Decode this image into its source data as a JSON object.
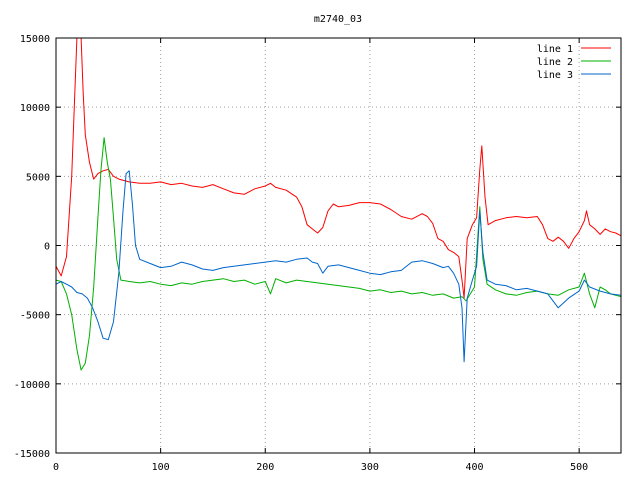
{
  "chart_data": {
    "type": "line",
    "title": "m2740_03",
    "xlabel": "",
    "ylabel": "",
    "xlim": [
      0,
      540
    ],
    "ylim": [
      -15000,
      15000
    ],
    "x_ticks": [
      0,
      100,
      200,
      300,
      400,
      500
    ],
    "y_ticks": [
      -15000,
      -10000,
      -5000,
      0,
      5000,
      10000,
      15000
    ],
    "grid": true,
    "legend_position": "top-right",
    "series": [
      {
        "name": "line 1",
        "color": "#ff0000",
        "points": [
          [
            0,
            -1500
          ],
          [
            5,
            -2200
          ],
          [
            10,
            -800
          ],
          [
            15,
            5000
          ],
          [
            18,
            11000
          ],
          [
            20,
            15000
          ],
          [
            22,
            15000
          ],
          [
            24,
            15000
          ],
          [
            26,
            11000
          ],
          [
            28,
            8000
          ],
          [
            32,
            6000
          ],
          [
            36,
            4800
          ],
          [
            40,
            5200
          ],
          [
            45,
            5400
          ],
          [
            50,
            5500
          ],
          [
            55,
            5000
          ],
          [
            60,
            4800
          ],
          [
            70,
            4600
          ],
          [
            80,
            4500
          ],
          [
            90,
            4500
          ],
          [
            100,
            4600
          ],
          [
            110,
            4400
          ],
          [
            120,
            4500
          ],
          [
            130,
            4300
          ],
          [
            140,
            4200
          ],
          [
            150,
            4400
          ],
          [
            160,
            4100
          ],
          [
            170,
            3800
          ],
          [
            180,
            3700
          ],
          [
            190,
            4100
          ],
          [
            200,
            4300
          ],
          [
            205,
            4500
          ],
          [
            210,
            4200
          ],
          [
            220,
            4000
          ],
          [
            230,
            3500
          ],
          [
            235,
            2800
          ],
          [
            240,
            1500
          ],
          [
            245,
            1200
          ],
          [
            250,
            900
          ],
          [
            255,
            1300
          ],
          [
            260,
            2500
          ],
          [
            265,
            3000
          ],
          [
            270,
            2800
          ],
          [
            280,
            2900
          ],
          [
            290,
            3100
          ],
          [
            300,
            3100
          ],
          [
            310,
            3000
          ],
          [
            320,
            2600
          ],
          [
            330,
            2100
          ],
          [
            340,
            1900
          ],
          [
            350,
            2300
          ],
          [
            355,
            2100
          ],
          [
            360,
            1600
          ],
          [
            365,
            500
          ],
          [
            370,
            300
          ],
          [
            375,
            -300
          ],
          [
            380,
            -500
          ],
          [
            385,
            -800
          ],
          [
            388,
            -2500
          ],
          [
            390,
            -3800
          ],
          [
            393,
            500
          ],
          [
            398,
            1500
          ],
          [
            402,
            2000
          ],
          [
            405,
            5500
          ],
          [
            407,
            7200
          ],
          [
            410,
            3500
          ],
          [
            413,
            1500
          ],
          [
            420,
            1800
          ],
          [
            430,
            2000
          ],
          [
            440,
            2100
          ],
          [
            450,
            2000
          ],
          [
            460,
            2100
          ],
          [
            465,
            1500
          ],
          [
            470,
            500
          ],
          [
            475,
            300
          ],
          [
            480,
            600
          ],
          [
            485,
            300
          ],
          [
            490,
            -200
          ],
          [
            495,
            500
          ],
          [
            500,
            1000
          ],
          [
            505,
            1800
          ],
          [
            507,
            2500
          ],
          [
            510,
            1500
          ],
          [
            515,
            1200
          ],
          [
            520,
            800
          ],
          [
            525,
            1200
          ],
          [
            530,
            1000
          ],
          [
            535,
            900
          ],
          [
            540,
            700
          ]
        ]
      },
      {
        "name": "line 2",
        "color": "#00b000",
        "points": [
          [
            0,
            -2500
          ],
          [
            5,
            -2600
          ],
          [
            10,
            -3500
          ],
          [
            15,
            -5000
          ],
          [
            20,
            -7500
          ],
          [
            24,
            -9000
          ],
          [
            28,
            -8500
          ],
          [
            32,
            -6500
          ],
          [
            36,
            -3000
          ],
          [
            40,
            2000
          ],
          [
            43,
            5500
          ],
          [
            46,
            7800
          ],
          [
            49,
            6000
          ],
          [
            52,
            4800
          ],
          [
            55,
            2000
          ],
          [
            58,
            -1000
          ],
          [
            62,
            -2500
          ],
          [
            70,
            -2600
          ],
          [
            80,
            -2700
          ],
          [
            90,
            -2600
          ],
          [
            100,
            -2800
          ],
          [
            110,
            -2900
          ],
          [
            120,
            -2700
          ],
          [
            130,
            -2800
          ],
          [
            140,
            -2600
          ],
          [
            150,
            -2500
          ],
          [
            160,
            -2400
          ],
          [
            170,
            -2600
          ],
          [
            180,
            -2500
          ],
          [
            190,
            -2800
          ],
          [
            200,
            -2600
          ],
          [
            205,
            -3500
          ],
          [
            210,
            -2400
          ],
          [
            220,
            -2700
          ],
          [
            230,
            -2500
          ],
          [
            240,
            -2600
          ],
          [
            250,
            -2700
          ],
          [
            260,
            -2800
          ],
          [
            270,
            -2900
          ],
          [
            280,
            -3000
          ],
          [
            290,
            -3100
          ],
          [
            300,
            -3300
          ],
          [
            310,
            -3200
          ],
          [
            320,
            -3400
          ],
          [
            330,
            -3300
          ],
          [
            340,
            -3500
          ],
          [
            350,
            -3400
          ],
          [
            360,
            -3600
          ],
          [
            370,
            -3500
          ],
          [
            380,
            -3800
          ],
          [
            388,
            -3700
          ],
          [
            392,
            -4000
          ],
          [
            396,
            -3500
          ],
          [
            400,
            -3000
          ],
          [
            405,
            2800
          ],
          [
            408,
            -1000
          ],
          [
            412,
            -2800
          ],
          [
            420,
            -3200
          ],
          [
            430,
            -3500
          ],
          [
            440,
            -3600
          ],
          [
            450,
            -3400
          ],
          [
            460,
            -3300
          ],
          [
            470,
            -3500
          ],
          [
            480,
            -3600
          ],
          [
            490,
            -3200
          ],
          [
            500,
            -3000
          ],
          [
            505,
            -2000
          ],
          [
            510,
            -3500
          ],
          [
            515,
            -4500
          ],
          [
            520,
            -3000
          ],
          [
            525,
            -3200
          ],
          [
            530,
            -3500
          ],
          [
            535,
            -3600
          ],
          [
            540,
            -3700
          ]
        ]
      },
      {
        "name": "line 3",
        "color": "#0066cc",
        "points": [
          [
            0,
            -2800
          ],
          [
            5,
            -2600
          ],
          [
            10,
            -2800
          ],
          [
            15,
            -3000
          ],
          [
            20,
            -3400
          ],
          [
            25,
            -3500
          ],
          [
            30,
            -3800
          ],
          [
            35,
            -4500
          ],
          [
            40,
            -5500
          ],
          [
            45,
            -6700
          ],
          [
            50,
            -6800
          ],
          [
            55,
            -5500
          ],
          [
            60,
            -2000
          ],
          [
            64,
            2500
          ],
          [
            67,
            5200
          ],
          [
            70,
            5400
          ],
          [
            73,
            3000
          ],
          [
            76,
            0
          ],
          [
            80,
            -1000
          ],
          [
            90,
            -1300
          ],
          [
            100,
            -1600
          ],
          [
            110,
            -1500
          ],
          [
            120,
            -1200
          ],
          [
            130,
            -1400
          ],
          [
            140,
            -1700
          ],
          [
            150,
            -1800
          ],
          [
            160,
            -1600
          ],
          [
            170,
            -1500
          ],
          [
            180,
            -1400
          ],
          [
            190,
            -1300
          ],
          [
            200,
            -1200
          ],
          [
            210,
            -1100
          ],
          [
            220,
            -1200
          ],
          [
            230,
            -1000
          ],
          [
            240,
            -900
          ],
          [
            245,
            -1200
          ],
          [
            250,
            -1300
          ],
          [
            255,
            -2000
          ],
          [
            260,
            -1500
          ],
          [
            270,
            -1400
          ],
          [
            280,
            -1600
          ],
          [
            290,
            -1800
          ],
          [
            300,
            -2000
          ],
          [
            310,
            -2100
          ],
          [
            320,
            -1900
          ],
          [
            330,
            -1800
          ],
          [
            340,
            -1200
          ],
          [
            350,
            -1100
          ],
          [
            360,
            -1300
          ],
          [
            370,
            -1600
          ],
          [
            375,
            -1500
          ],
          [
            380,
            -2000
          ],
          [
            385,
            -2800
          ],
          [
            388,
            -4500
          ],
          [
            390,
            -8400
          ],
          [
            393,
            -3800
          ],
          [
            398,
            -2500
          ],
          [
            402,
            -1500
          ],
          [
            405,
            2500
          ],
          [
            408,
            -500
          ],
          [
            412,
            -2500
          ],
          [
            420,
            -2800
          ],
          [
            430,
            -2900
          ],
          [
            440,
            -3200
          ],
          [
            450,
            -3100
          ],
          [
            460,
            -3300
          ],
          [
            470,
            -3500
          ],
          [
            480,
            -4500
          ],
          [
            490,
            -3800
          ],
          [
            500,
            -3300
          ],
          [
            505,
            -2500
          ],
          [
            510,
            -3000
          ],
          [
            520,
            -3300
          ],
          [
            530,
            -3500
          ],
          [
            540,
            -3600
          ]
        ]
      }
    ]
  }
}
